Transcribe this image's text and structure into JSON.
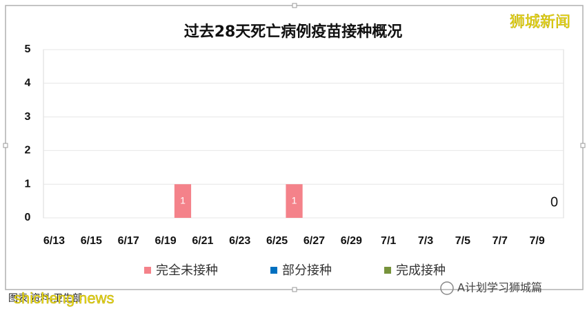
{
  "chart_data": {
    "type": "bar",
    "title": "过去28天死亡病例疫苗接种概况",
    "categories": [
      "6/13",
      null,
      "6/15",
      null,
      "6/17",
      null,
      "6/19",
      null,
      "6/21",
      null,
      "6/23",
      null,
      "6/25",
      null,
      "6/27",
      null,
      "6/29",
      null,
      "7/1",
      null,
      "7/3",
      null,
      "7/5",
      null,
      "7/7",
      null,
      "7/9",
      null
    ],
    "series": [
      {
        "name": "完全未接种",
        "color": "#f4828a",
        "values": [
          null,
          null,
          null,
          null,
          null,
          null,
          null,
          1,
          null,
          null,
          null,
          null,
          null,
          1,
          null,
          null,
          null,
          null,
          null,
          null,
          null,
          null,
          null,
          null,
          null,
          null,
          null,
          0
        ]
      },
      {
        "name": "部分接种",
        "color": "#0070c0",
        "values": [
          null,
          null,
          null,
          null,
          null,
          null,
          null,
          null,
          null,
          null,
          null,
          null,
          null,
          null,
          null,
          null,
          null,
          null,
          null,
          null,
          null,
          null,
          null,
          null,
          null,
          null,
          null,
          null
        ]
      },
      {
        "name": "完成接种",
        "color": "#77933c",
        "values": [
          null,
          null,
          null,
          null,
          null,
          null,
          null,
          null,
          null,
          null,
          null,
          null,
          null,
          null,
          null,
          null,
          null,
          null,
          null,
          null,
          null,
          null,
          null,
          null,
          null,
          null,
          null,
          null
        ]
      }
    ],
    "ylim": [
      0,
      5
    ],
    "yticks": [
      0,
      1,
      2,
      3,
      4,
      5
    ],
    "grid": true,
    "legend": "bottom",
    "watermark": "狮城新闻",
    "source": "图表 资料:卫生部",
    "site": "shicheng.news",
    "account": "A计划学习狮城篇"
  }
}
